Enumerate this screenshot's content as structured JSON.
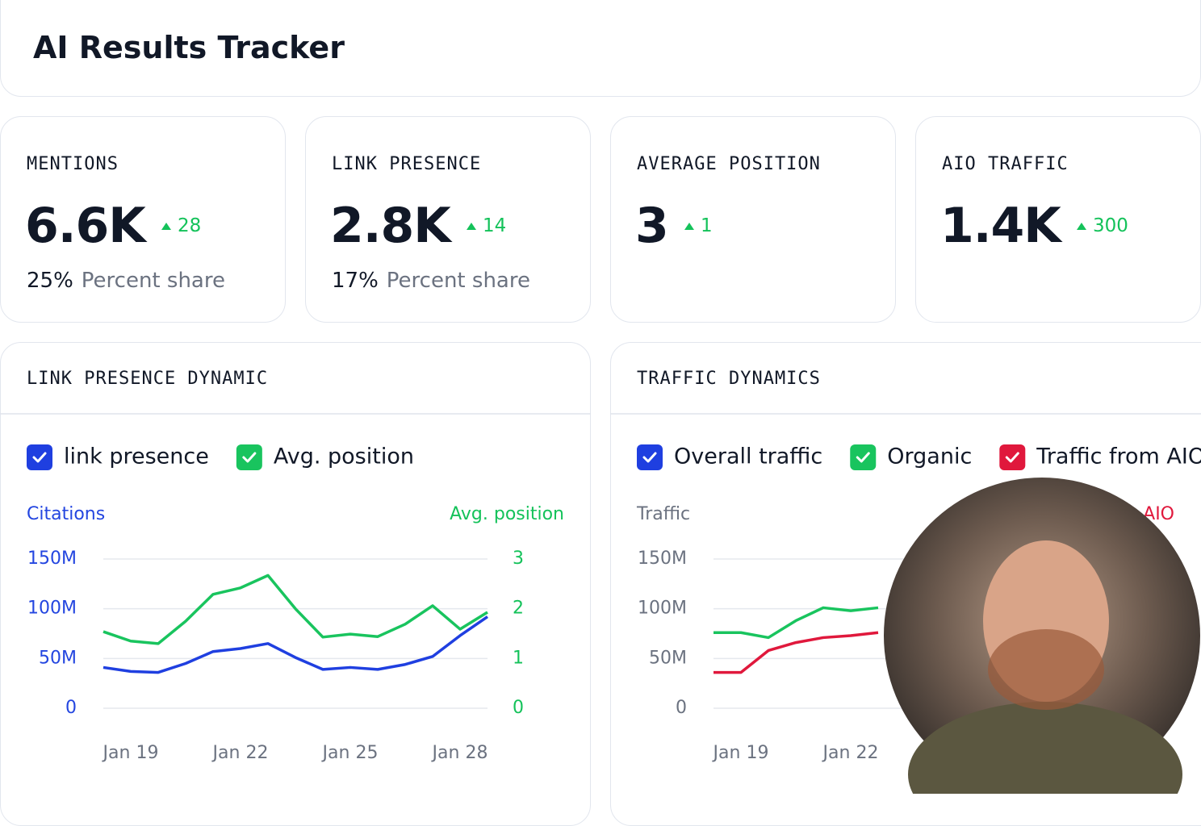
{
  "header": {
    "title": "AI Results Tracker"
  },
  "kpis": [
    {
      "label": "MENTIONS",
      "value": "6.6K",
      "delta": "28",
      "share": "25%",
      "share_label": "Percent share"
    },
    {
      "label": "LINK PRESENCE",
      "value": "2.8K",
      "delta": "14",
      "share": "17%",
      "share_label": "Percent share"
    },
    {
      "label": "AVERAGE POSITION",
      "value": "3",
      "delta": "1"
    },
    {
      "label": "AIO TRAFFIC",
      "value": "1.4K",
      "delta": "300"
    }
  ],
  "chart_data": [
    {
      "type": "line",
      "title": "LINK PRESENCE DYNAMIC",
      "y_label": "Citations",
      "y2_label": "Avg. position",
      "y_color": "#2446e0",
      "y2_color": "#14c25a",
      "grid": true,
      "categories": [
        null,
        "Jan 19",
        null,
        null,
        null,
        "Jan 22",
        null,
        null,
        null,
        "Jan 25",
        null,
        null,
        null,
        "Jan 28",
        null
      ],
      "series": [
        {
          "name": "link presence",
          "color": "#1f3fe0",
          "values": [
            41000000,
            37000000,
            36000000,
            45000000,
            57000000,
            60000000,
            65000000,
            51000000,
            39000000,
            41000000,
            39000000,
            44000000,
            52000000,
            73000000,
            92000000
          ]
        },
        {
          "name": "Avg. position",
          "color": "#19c45e",
          "axis": "y2",
          "values": [
            1.54,
            1.35,
            1.3,
            1.75,
            2.29,
            2.42,
            2.67,
            2.0,
            1.43,
            1.49,
            1.44,
            1.69,
            2.06,
            1.59,
            1.93
          ]
        }
      ],
      "ylim": [
        0,
        150000000
      ],
      "yticks": [
        0,
        {
          "value": 50000000,
          "label": "50M"
        },
        {
          "value": 100000000,
          "label": "100M"
        },
        {
          "value": 150000000,
          "label": "150M"
        }
      ],
      "y2lim": [
        0,
        3
      ],
      "y2ticks": [
        0,
        1,
        2,
        3
      ]
    },
    {
      "type": "line",
      "title": "TRAFFIC DYNAMICS",
      "y_label": "Traffic",
      "y2_label": "AIO",
      "y_color": "#6b7280",
      "y2_color": "#e0183c",
      "grid": true,
      "categories": [
        null,
        "Jan 19",
        null,
        null,
        null,
        "Jan 22",
        null,
        null,
        null,
        null,
        null,
        null,
        null,
        null,
        null
      ],
      "series": [
        {
          "name": "Overall traffic",
          "color": "#1f3fe0",
          "values": [
            null,
            null,
            null,
            null,
            null,
            null,
            null,
            null,
            null,
            null,
            null,
            null,
            null,
            null,
            null
          ]
        },
        {
          "name": "Organic",
          "color": "#19c45e",
          "values": [
            76000000,
            76000000,
            71000000,
            88000000,
            101000000,
            98000000,
            101000000,
            null,
            null,
            null,
            null,
            null,
            null,
            null,
            null
          ]
        },
        {
          "name": "Traffic from AIO",
          "color": "#e0183c",
          "values": [
            36000000,
            36000000,
            58000000,
            66000000,
            71000000,
            73000000,
            76000000,
            null,
            null,
            null,
            null,
            null,
            null,
            null,
            null
          ]
        }
      ],
      "ylim": [
        0,
        150000000
      ],
      "yticks": [
        0,
        {
          "value": 50000000,
          "label": "50M"
        },
        {
          "value": 100000000,
          "label": "100M"
        },
        {
          "value": 150000000,
          "label": "150M"
        }
      ]
    }
  ]
}
